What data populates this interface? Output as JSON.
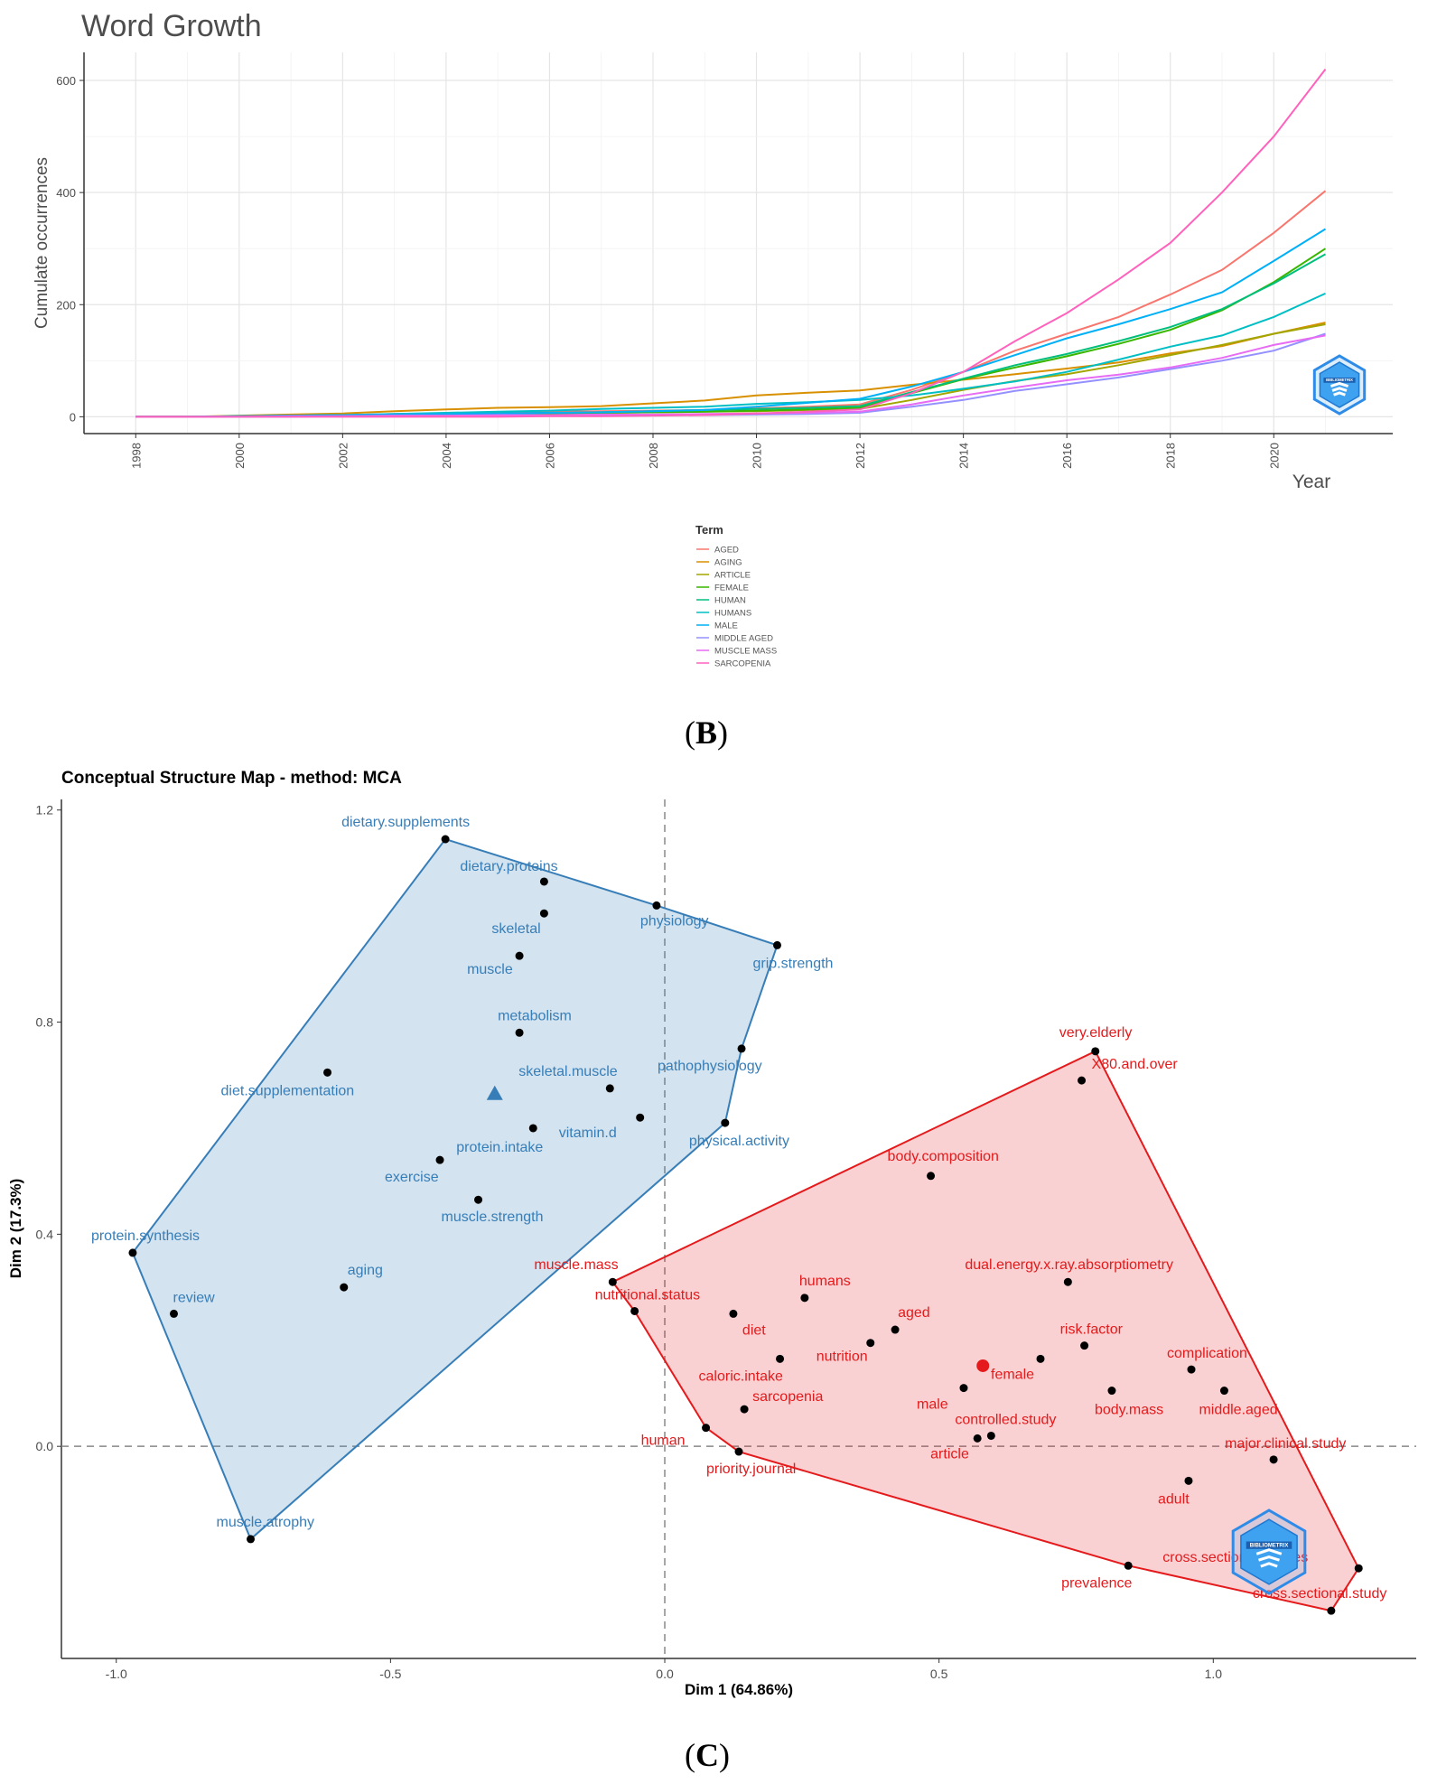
{
  "chart_data": [
    {
      "id": "word-growth",
      "type": "line",
      "title": "Word Growth",
      "xlabel": "Year",
      "ylabel": "Cumulate occurrences",
      "xlim": [
        1997,
        2022.3
      ],
      "ylim": [
        -30,
        650
      ],
      "x_ticks": [
        1998,
        2000,
        2002,
        2004,
        2006,
        2008,
        2010,
        2012,
        2014,
        2016,
        2018,
        2020
      ],
      "y_ticks": [
        0,
        200,
        400,
        600
      ],
      "legend_title": "Term",
      "legend_position": "bottom",
      "x": [
        1998,
        1999,
        2000,
        2001,
        2002,
        2003,
        2004,
        2005,
        2006,
        2007,
        2008,
        2009,
        2010,
        2011,
        2012,
        2013,
        2014,
        2015,
        2016,
        2017,
        2018,
        2019,
        2020,
        2021
      ],
      "series": [
        {
          "name": "AGED",
          "color": "#F8766D",
          "values": [
            0,
            0,
            1,
            2,
            3,
            5,
            6,
            8,
            9,
            10,
            11,
            12,
            15,
            18,
            22,
            48,
            80,
            118,
            148,
            178,
            218,
            262,
            328,
            403
          ]
        },
        {
          "name": "AGING",
          "color": "#D89000",
          "values": [
            0,
            0,
            2,
            4,
            6,
            10,
            13,
            16,
            17,
            19,
            24,
            29,
            38,
            43,
            47,
            57,
            66,
            76,
            86,
            97,
            113,
            126,
            148,
            168
          ]
        },
        {
          "name": "ARTICLE",
          "color": "#A3A500",
          "values": [
            0,
            0,
            1,
            2,
            3,
            4,
            5,
            6,
            6,
            7,
            8,
            9,
            10,
            12,
            14,
            30,
            48,
            64,
            76,
            92,
            110,
            128,
            148,
            165
          ]
        },
        {
          "name": "FEMALE",
          "color": "#39B600",
          "values": [
            0,
            0,
            1,
            1,
            2,
            3,
            4,
            5,
            6,
            7,
            8,
            9,
            11,
            13,
            16,
            42,
            67,
            88,
            108,
            130,
            155,
            190,
            240,
            300
          ]
        },
        {
          "name": "HUMAN",
          "color": "#00BF7D",
          "values": [
            0,
            0,
            1,
            2,
            3,
            4,
            5,
            6,
            7,
            8,
            10,
            12,
            14,
            16,
            19,
            44,
            68,
            92,
            112,
            135,
            160,
            192,
            238,
            290
          ]
        },
        {
          "name": "HUMANS",
          "color": "#00BFC4",
          "values": [
            0,
            0,
            1,
            2,
            3,
            5,
            7,
            9,
            11,
            14,
            16,
            18,
            23,
            26,
            30,
            38,
            50,
            63,
            80,
            102,
            125,
            145,
            178,
            220
          ]
        },
        {
          "name": "MALE",
          "color": "#00B0F6",
          "values": [
            0,
            0,
            1,
            2,
            3,
            4,
            5,
            6,
            7,
            8,
            10,
            12,
            18,
            25,
            32,
            54,
            80,
            110,
            140,
            165,
            192,
            222,
            278,
            335
          ]
        },
        {
          "name": "MIDDLE AGED",
          "color": "#9590FF",
          "values": [
            0,
            0,
            0,
            0,
            1,
            1,
            1,
            2,
            2,
            2,
            3,
            3,
            4,
            5,
            7,
            18,
            30,
            46,
            58,
            70,
            85,
            100,
            118,
            148
          ]
        },
        {
          "name": "MUSCLE MASS",
          "color": "#E76BF3",
          "values": [
            0,
            0,
            0,
            1,
            1,
            2,
            2,
            3,
            3,
            4,
            4,
            5,
            6,
            7,
            9,
            22,
            38,
            52,
            65,
            75,
            88,
            105,
            128,
            145
          ]
        },
        {
          "name": "SARCOPENIA",
          "color": "#FF62BC",
          "values": [
            0,
            0,
            0,
            0,
            0,
            0,
            0,
            0,
            1,
            1,
            2,
            3,
            6,
            9,
            13,
            42,
            80,
            135,
            185,
            245,
            310,
            400,
            500,
            620
          ]
        }
      ]
    },
    {
      "id": "conceptual-structure-map",
      "type": "scatter",
      "title": "Conceptual Structure Map - method: MCA",
      "xlabel": "Dim 1 (64.86%)",
      "ylabel": "Dim 2 (17.3%)",
      "xlim": [
        -1.1,
        1.37
      ],
      "ylim": [
        -0.4,
        1.22
      ],
      "x_ticks": [
        -1.0,
        -0.5,
        0.0,
        0.5,
        1.0
      ],
      "x_tick_labels": [
        "-1.0",
        "-0.5",
        "0.0",
        "0.5",
        "1.0"
      ],
      "y_ticks": [
        0.0,
        0.4,
        0.8,
        1.2
      ],
      "y_tick_labels": [
        "0.0",
        "0.4",
        "0.8",
        "1.2"
      ],
      "clusters": [
        {
          "name": "cluster-1",
          "color": "#377EB8",
          "centroid": [
            -0.31,
            0.665
          ],
          "hull": [
            "dietary.supplements",
            "physiology",
            "grip.strength",
            "pathophysiology",
            "physical.activity",
            "muscle.atrophy",
            "protein.synthesis"
          ],
          "points": [
            {
              "label": "dietary.supplements",
              "x": -0.4,
              "y": 1.145
            },
            {
              "label": "dietary.proteins",
              "x": -0.22,
              "y": 1.065
            },
            {
              "label": "physiology",
              "x": -0.015,
              "y": 1.02
            },
            {
              "label": "skeletal",
              "x": -0.22,
              "y": 1.005
            },
            {
              "label": "grip.strength",
              "x": 0.205,
              "y": 0.945
            },
            {
              "label": "muscle",
              "x": -0.265,
              "y": 0.925
            },
            {
              "label": "metabolism",
              "x": -0.265,
              "y": 0.78
            },
            {
              "label": "pathophysiology",
              "x": 0.14,
              "y": 0.75
            },
            {
              "label": "diet.supplementation",
              "x": -0.615,
              "y": 0.705
            },
            {
              "label": "skeletal.muscle",
              "x": -0.1,
              "y": 0.675
            },
            {
              "label": "vitamin.d",
              "x": -0.045,
              "y": 0.62
            },
            {
              "label": "physical.activity",
              "x": 0.11,
              "y": 0.61
            },
            {
              "label": "protein.intake",
              "x": -0.24,
              "y": 0.6
            },
            {
              "label": "exercise",
              "x": -0.41,
              "y": 0.54
            },
            {
              "label": "muscle.strength",
              "x": -0.34,
              "y": 0.465
            },
            {
              "label": "protein.synthesis",
              "x": -0.97,
              "y": 0.365
            },
            {
              "label": "aging",
              "x": -0.585,
              "y": 0.3
            },
            {
              "label": "review",
              "x": -0.895,
              "y": 0.25
            },
            {
              "label": "muscle.atrophy",
              "x": -0.755,
              "y": -0.175
            }
          ]
        },
        {
          "name": "cluster-2",
          "color": "#E41A1C",
          "centroid": [
            0.58,
            0.152
          ],
          "hull": [
            "muscle.mass",
            "very.elderly",
            "cross.sectional.studies",
            "cross.sectional.study",
            "prevalence",
            "priority.journal",
            "human",
            "nutritional.status"
          ],
          "points": [
            {
              "label": "very.elderly",
              "x": 0.785,
              "y": 0.745
            },
            {
              "label": "X80.and.over",
              "x": 0.76,
              "y": 0.69
            },
            {
              "label": "body.composition",
              "x": 0.485,
              "y": 0.51
            },
            {
              "label": "muscle.mass",
              "x": -0.095,
              "y": 0.31
            },
            {
              "label": "dual.energy.x.ray.absorptiometry",
              "x": 0.735,
              "y": 0.31
            },
            {
              "label": "humans",
              "x": 0.255,
              "y": 0.28
            },
            {
              "label": "nutritional.status",
              "x": -0.055,
              "y": 0.255
            },
            {
              "label": "diet",
              "x": 0.125,
              "y": 0.25
            },
            {
              "label": "aged",
              "x": 0.42,
              "y": 0.22
            },
            {
              "label": "nutrition",
              "x": 0.375,
              "y": 0.195
            },
            {
              "label": "risk.factor",
              "x": 0.765,
              "y": 0.19
            },
            {
              "label": "caloric.intake",
              "x": 0.21,
              "y": 0.165
            },
            {
              "label": "complication",
              "x": 0.96,
              "y": 0.145
            },
            {
              "label": "female",
              "x": 0.685,
              "y": 0.165
            },
            {
              "label": "body.mass",
              "x": 0.815,
              "y": 0.105
            },
            {
              "label": "middle.aged",
              "x": 1.02,
              "y": 0.105
            },
            {
              "label": "male",
              "x": 0.545,
              "y": 0.11
            },
            {
              "label": "sarcopenia",
              "x": 0.145,
              "y": 0.07
            },
            {
              "label": "human",
              "x": 0.075,
              "y": 0.035
            },
            {
              "label": "controlled.study",
              "x": 0.595,
              "y": 0.02
            },
            {
              "label": "article",
              "x": 0.57,
              "y": 0.015
            },
            {
              "label": "priority.journal",
              "x": 0.135,
              "y": -0.01
            },
            {
              "label": "major.clinical.study",
              "x": 1.11,
              "y": -0.025
            },
            {
              "label": "adult",
              "x": 0.955,
              "y": -0.065
            },
            {
              "label": "prevalence",
              "x": 0.845,
              "y": -0.225
            },
            {
              "label": "cross.sectional.studies",
              "x": 1.265,
              "y": -0.23
            },
            {
              "label": "cross.sectional.study",
              "x": 1.215,
              "y": -0.31
            }
          ]
        }
      ]
    }
  ],
  "panels": {
    "b_label": "B",
    "c_label": "C"
  },
  "watermark": "BIBLIOMETRIX"
}
